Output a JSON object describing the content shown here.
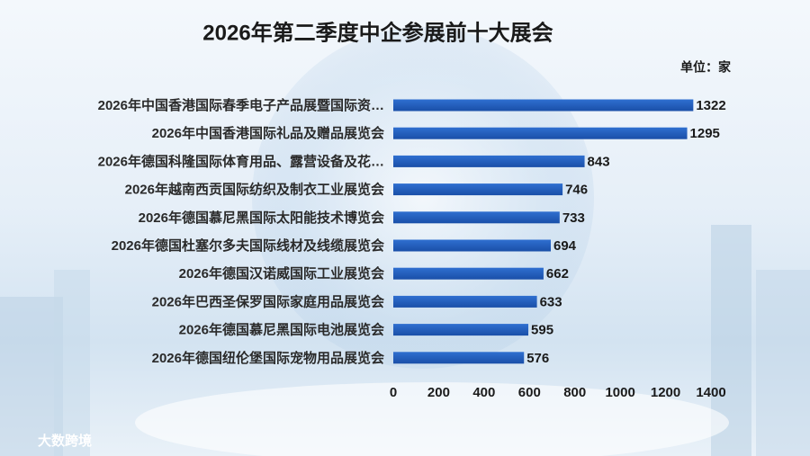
{
  "chart_data": {
    "type": "bar",
    "orientation": "horizontal",
    "title": "2026年第二季度中企参展前十大展会",
    "unit_label": "单位：家",
    "categories": [
      "2026年中国香港国际春季电子产品展暨国际资…",
      "2026年中国香港国际礼品及赠品展览会",
      "2026年德国科隆国际体育用品、露营设备及花…",
      "2026年越南西贡国际纺织及制衣工业展览会",
      "2026年德国慕尼黑国际太阳能技术博览会",
      "2026年德国杜塞尔多夫国际线材及线缆展览会",
      "2026年德国汉诺威国际工业展览会",
      "2026年巴西圣保罗国际家庭用品展览会",
      "2026年德国慕尼黑国际电池展览会",
      "2026年德国纽伦堡国际宠物用品展览会"
    ],
    "values": [
      1322,
      1295,
      843,
      746,
      733,
      694,
      662,
      633,
      595,
      576
    ],
    "color": "#1f5cb8",
    "xlim": [
      0,
      1400
    ],
    "xticks": [
      0,
      200,
      400,
      600,
      800,
      1000,
      1200,
      1400
    ]
  },
  "watermark": "大数跨境"
}
